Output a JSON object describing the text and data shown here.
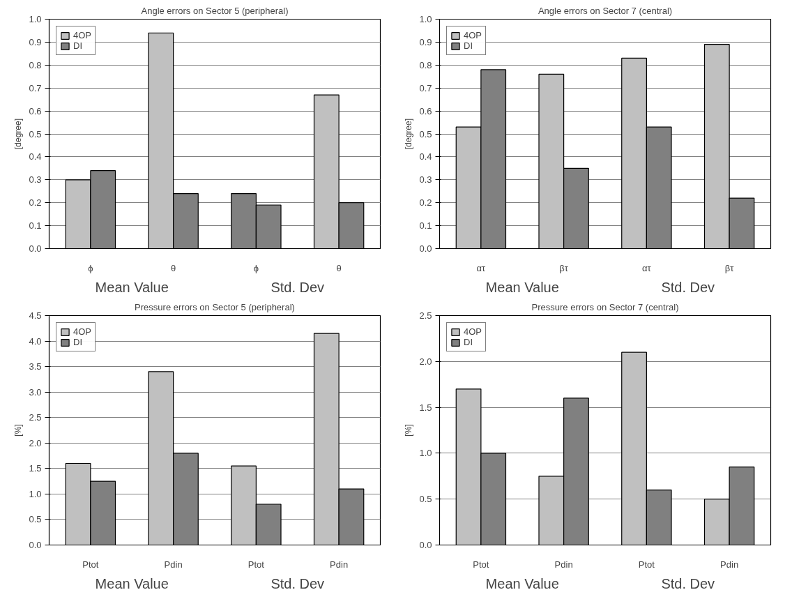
{
  "chart_data": [
    {
      "type": "bar",
      "title": "Angle errors on Sector 5 (peripheral)",
      "ylabel": "[degree]",
      "categories": [
        "ϕ",
        "θ",
        "ϕ",
        "θ"
      ],
      "annotations": [
        "Mean Value",
        "Std. Dev"
      ],
      "ylim": [
        0,
        1.0
      ],
      "yticks": [
        {
          "value": 0,
          "label": "0.0"
        },
        0.1,
        0.2,
        0.3,
        0.4,
        0.5,
        0.6,
        0.7,
        0.8,
        0.9,
        {
          "value": 1,
          "label": "1.0"
        }
      ],
      "grid": "y",
      "legend": "top left",
      "series": [
        {
          "name": "4OP",
          "color": "#c0c0c0",
          "colors": [
            "#c0c0c0",
            "#c0c0c0",
            "#808080",
            "#c0c0c0"
          ],
          "values": [
            0.3,
            0.94,
            0.24,
            0.67
          ]
        },
        {
          "name": "DI",
          "color": "#808080",
          "values": [
            0.34,
            0.24,
            0.19,
            0.2
          ]
        }
      ]
    },
    {
      "type": "bar",
      "title": "Angle errors on Sector 7 (central)",
      "ylabel": "[degree]",
      "categories": [
        "ατ",
        "βτ",
        "ατ",
        "βτ"
      ],
      "annotations": [
        "Mean Value",
        "Std. Dev"
      ],
      "ylim": [
        0,
        1.0
      ],
      "yticks": [
        {
          "value": 0,
          "label": "0.0"
        },
        0.1,
        0.2,
        0.3,
        0.4,
        0.5,
        0.6,
        0.7,
        0.8,
        0.9,
        {
          "value": 1,
          "label": "1.0"
        }
      ],
      "grid": "y",
      "legend": "top left",
      "series": [
        {
          "name": "4OP",
          "color": "#c0c0c0",
          "values": [
            0.53,
            0.76,
            0.83,
            0.89
          ]
        },
        {
          "name": "DI",
          "color": "#808080",
          "values": [
            0.78,
            0.35,
            0.53,
            0.22
          ]
        }
      ]
    },
    {
      "type": "bar",
      "title": "Pressure errors on Sector 5 (peripheral)",
      "ylabel": "[%]",
      "categories": [
        "Ptot",
        "Pdin",
        "Ptot",
        "Pdin"
      ],
      "annotations": [
        "Mean Value",
        "Std. Dev"
      ],
      "ylim": [
        0,
        4.5
      ],
      "yticks": [
        {
          "value": 0,
          "label": "0.0"
        },
        0.5,
        {
          "value": 1,
          "label": "1.0"
        },
        1.5,
        {
          "value": 2,
          "label": "2.0"
        },
        2.5,
        {
          "value": 3,
          "label": "3.0"
        },
        3.5,
        {
          "value": 4,
          "label": "4.0"
        },
        4.5
      ],
      "grid": "y",
      "legend": "top left",
      "series": [
        {
          "name": "4OP",
          "color": "#c0c0c0",
          "values": [
            1.6,
            3.4,
            1.55,
            4.15
          ]
        },
        {
          "name": "DI",
          "color": "#808080",
          "values": [
            1.25,
            1.8,
            0.8,
            1.1
          ]
        }
      ]
    },
    {
      "type": "bar",
      "title": "Pressure errors on Sector 7 (central)",
      "ylabel": "[%]",
      "categories": [
        "Ptot",
        "Pdin",
        "Ptot",
        "Pdin"
      ],
      "annotations": [
        "Mean Value",
        "Std. Dev"
      ],
      "ylim": [
        0,
        2.5
      ],
      "yticks": [
        {
          "value": 0,
          "label": "0.0"
        },
        0.5,
        {
          "value": 1,
          "label": "1.0"
        },
        1.5,
        {
          "value": 2,
          "label": "2.0"
        },
        2.5
      ],
      "grid": "y",
      "legend": "top left",
      "series": [
        {
          "name": "4OP",
          "color": "#c0c0c0",
          "values": [
            1.7,
            0.75,
            2.1,
            0.5
          ]
        },
        {
          "name": "DI",
          "color": "#808080",
          "values": [
            1.0,
            1.6,
            0.6,
            0.85
          ]
        }
      ]
    }
  ]
}
